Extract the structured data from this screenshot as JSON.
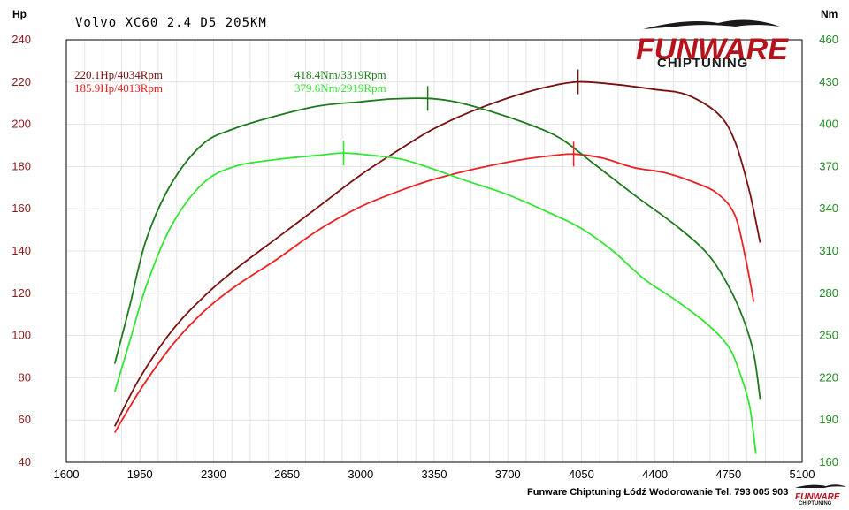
{
  "title": "Volvo XC60 2.4 D5 205KM",
  "footer": "Funware Chiptuning Łódź Wodorowanie Tel. 793 005 903",
  "logo": {
    "main": "FUNWARE",
    "sub": "CHIPTUNING",
    "brand_color": "#b5121b"
  },
  "peaks": {
    "hp_tuned": "220.1Hp/4034Rpm",
    "hp_stock": "185.9Hp/4013Rpm",
    "nm_tuned": "418.4Nm/3319Rpm",
    "nm_stock": "379.6Nm/2919Rpm"
  },
  "chart_data": {
    "type": "line",
    "title": "Volvo XC60 2.4 D5 205KM",
    "xlim": [
      1600,
      5100
    ],
    "x_ticks": [
      1600,
      1950,
      2300,
      2650,
      3000,
      3350,
      3700,
      4050,
      4400,
      4750,
      5100
    ],
    "y_left": {
      "label": "Hp",
      "range": [
        40,
        240
      ],
      "ticks": [
        40,
        60,
        80,
        100,
        120,
        140,
        160,
        180,
        200,
        220,
        240
      ]
    },
    "y_right": {
      "label": "Nm",
      "range": [
        160,
        460
      ],
      "ticks": [
        160,
        190,
        220,
        250,
        280,
        310,
        340,
        370,
        400,
        430,
        460
      ]
    },
    "series": [
      {
        "key": "hp_tuned",
        "axis": "left",
        "color": "#7a1010",
        "x": [
          1830,
          1950,
          2100,
          2250,
          2400,
          2600,
          2800,
          3000,
          3200,
          3350,
          3550,
          3750,
          3900,
          4034,
          4200,
          4400,
          4550,
          4700,
          4780,
          4850,
          4900
        ],
        "y": [
          57,
          80,
          102,
          118,
          131,
          146,
          161,
          176,
          189,
          198,
          207,
          214,
          218,
          220.1,
          219,
          216.5,
          214,
          205,
          192,
          168,
          144
        ]
      },
      {
        "key": "hp_stock",
        "axis": "left",
        "color": "#ee2020",
        "x": [
          1830,
          1950,
          2100,
          2250,
          2400,
          2600,
          2800,
          3000,
          3200,
          3350,
          3550,
          3750,
          3900,
          4013,
          4150,
          4300,
          4450,
          4600,
          4700,
          4780,
          4830,
          4870
        ],
        "y": [
          54,
          74,
          95,
          111,
          123,
          136,
          150,
          161,
          169,
          174,
          179,
          183,
          185,
          185.9,
          184,
          179.5,
          177,
          172,
          167,
          157,
          137,
          116
        ]
      },
      {
        "key": "nm_tuned",
        "axis": "right",
        "color": "#1d7a1d",
        "x": [
          1830,
          1900,
          1980,
          2100,
          2250,
          2400,
          2600,
          2800,
          3000,
          3150,
          3319,
          3450,
          3600,
          3800,
          3950,
          4100,
          4300,
          4500,
          4650,
          4750,
          4820,
          4870,
          4900
        ],
        "y": [
          230,
          270,
          318,
          358,
          386,
          397,
          406,
          413,
          416,
          418,
          418.4,
          416,
          410,
          400,
          390,
          373,
          350,
          328,
          308,
          285,
          262,
          237,
          205
        ]
      },
      {
        "key": "nm_stock",
        "axis": "right",
        "color": "#33e633",
        "x": [
          1830,
          1900,
          1980,
          2100,
          2250,
          2400,
          2600,
          2800,
          2919,
          3050,
          3200,
          3350,
          3500,
          3700,
          3900,
          4050,
          4200,
          4350,
          4500,
          4650,
          4750,
          4800,
          4850,
          4880
        ],
        "y": [
          210,
          245,
          285,
          328,
          358,
          370,
          375,
          378,
          379.6,
          378,
          375,
          368,
          360,
          350,
          337,
          326,
          310,
          290,
          275,
          258,
          242,
          225,
          200,
          166
        ]
      }
    ],
    "grid": true
  }
}
